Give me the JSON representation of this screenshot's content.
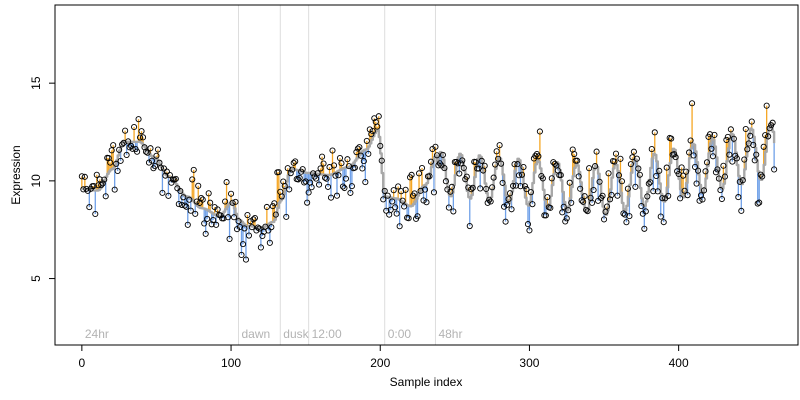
{
  "chart_data": {
    "type": "scatter",
    "title": "",
    "xlabel": "Sample index",
    "ylabel": "Expression",
    "xlim": [
      -18,
      480
    ],
    "ylim": [
      1.6,
      19
    ],
    "x_ticks": [
      0,
      100,
      200,
      300,
      400
    ],
    "y_ticks": [
      5,
      10,
      15
    ],
    "grid": false,
    "legend": "none",
    "colors": {
      "points_stroke": "#000000",
      "fit_line": "#a8a8a8",
      "residual_positive": "#f5a623",
      "residual_negative": "#6fa0e8",
      "phase_lines": "#dddddd",
      "phase_labels": "#b3b3b3"
    },
    "phase_markers": [
      {
        "x": 0,
        "label": "24hr",
        "line": false
      },
      {
        "x": 105,
        "label": "dawn",
        "line": true
      },
      {
        "x": 133,
        "label": "dusk",
        "line": true
      },
      {
        "x": 152,
        "label": "12:00",
        "line": true
      },
      {
        "x": 203,
        "label": "0:00",
        "line": true
      },
      {
        "x": 237,
        "label": "48hr",
        "line": true
      }
    ],
    "anchors_x": [
      0,
      10,
      20,
      28,
      38,
      48,
      58,
      70,
      80,
      92,
      100,
      105,
      110,
      120,
      128,
      133,
      140,
      152,
      165,
      178,
      190,
      198,
      203,
      210,
      220,
      230,
      237
    ],
    "anchors_y": [
      9.6,
      9.5,
      10.6,
      12.0,
      12.0,
      11.2,
      10.2,
      9.2,
      8.6,
      8.2,
      8.9,
      8.0,
      7.7,
      7.6,
      7.9,
      9.0,
      10.6,
      10.4,
      10.3,
      10.7,
      11.6,
      12.6,
      9.2,
      9.1,
      8.7,
      9.8,
      11.3
    ],
    "wave_after_x": 237,
    "wave_period": 13,
    "wave_amp_start": 1.1,
    "wave_amp_end": 1.4,
    "wave_base_start": 10.4,
    "wave_base_mid": 9.5,
    "wave_base_end": 11.6,
    "n_points": 465,
    "noise_sd": 0.75,
    "seed": 7
  }
}
